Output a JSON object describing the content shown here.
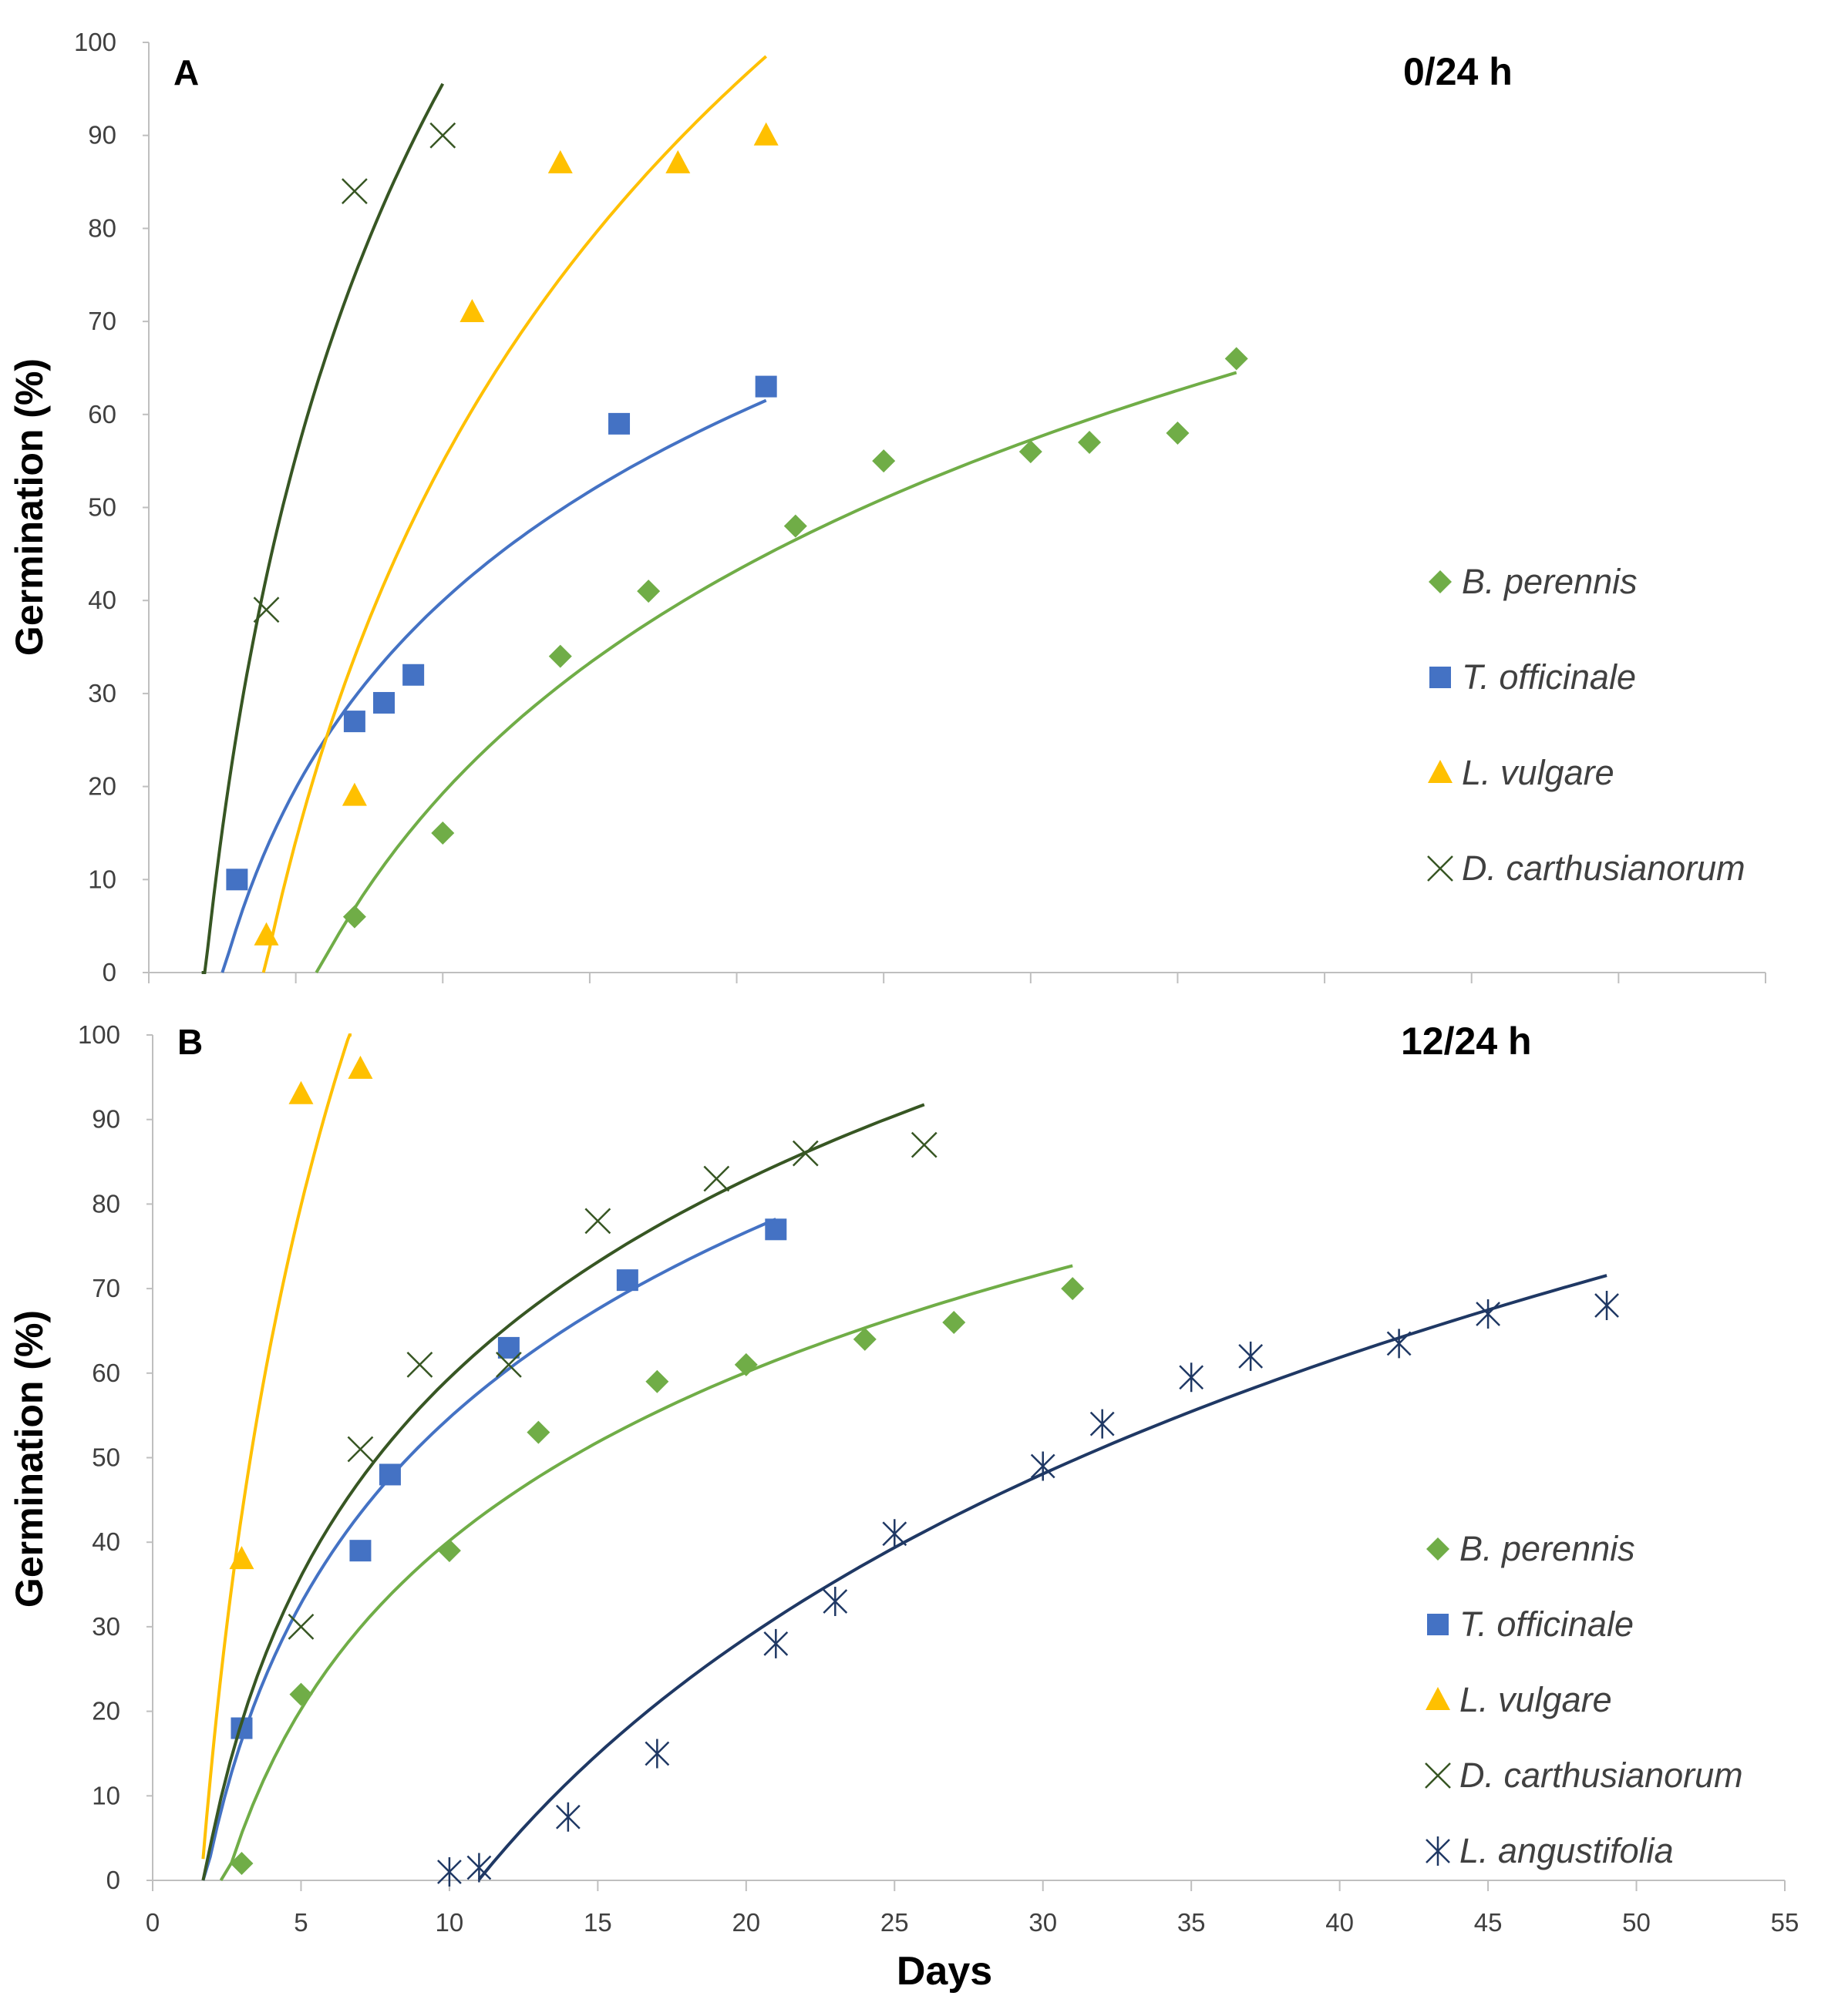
{
  "colors": {
    "B. perennis": "#70AD47",
    "T. officinale": "#4472C4",
    "L. vulgare": "#FFC000",
    "D. carthusianorum": "#375623",
    "L. angustifolia": "#1F3864"
  },
  "series_style": {
    "B. perennis": {
      "marker": "diamond",
      "color": "#70AD47"
    },
    "T. officinale": {
      "marker": "square",
      "color": "#4472C4"
    },
    "L. vulgare": {
      "marker": "triangle",
      "color": "#FFC000"
    },
    "D. carthusianorum": {
      "marker": "x",
      "color": "#375623"
    },
    "L. angustifolia": {
      "marker": "asterisk",
      "color": "#1F3864"
    }
  },
  "chart_data": [
    {
      "type": "scatter",
      "panel": "A",
      "title": "0/24 h",
      "xlabel": "",
      "ylabel": "Germination (%)",
      "xlim": [
        0,
        55
      ],
      "ylim": [
        0,
        100
      ],
      "xticks": [
        0,
        5,
        10,
        15,
        20,
        25,
        30,
        35,
        40,
        45,
        50,
        55
      ],
      "yticks": [
        0,
        10,
        20,
        30,
        40,
        50,
        60,
        70,
        80,
        90,
        100
      ],
      "show_xtick_labels": false,
      "legend_position": "right",
      "series": [
        {
          "name": "B. perennis",
          "x": [
            7,
            10,
            14,
            17,
            22,
            25,
            30,
            32,
            35,
            37
          ],
          "y": [
            6,
            15,
            34,
            41,
            48,
            55,
            56,
            57,
            58,
            66
          ],
          "trend": {
            "type": "logarithmic",
            "x_range": [
              5.7,
              37
            ]
          }
        },
        {
          "name": "T. officinale",
          "x": [
            3,
            7,
            8,
            9,
            16,
            21
          ],
          "y": [
            10,
            27,
            29,
            32,
            59,
            63
          ],
          "trend": {
            "type": "logarithmic",
            "x_range": [
              2.5,
              21
            ]
          }
        },
        {
          "name": "L. vulgare",
          "x": [
            4,
            7,
            11,
            14,
            18,
            21
          ],
          "y": [
            4,
            19,
            71,
            87,
            87,
            90
          ],
          "trend": {
            "type": "logarithmic",
            "x_range": [
              3.9,
              21
            ]
          }
        },
        {
          "name": "D. carthusianorum",
          "x": [
            4,
            7,
            10
          ],
          "y": [
            39,
            84,
            90
          ],
          "trend": {
            "type": "logarithmic",
            "x_range": [
              1.8,
              10
            ]
          }
        }
      ]
    },
    {
      "type": "scatter",
      "panel": "B",
      "title": "12/24 h",
      "xlabel": "Days",
      "ylabel": "Germination (%)",
      "xlim": [
        0,
        55
      ],
      "ylim": [
        0,
        100
      ],
      "xticks": [
        0,
        5,
        10,
        15,
        20,
        25,
        30,
        35,
        40,
        45,
        50,
        55
      ],
      "yticks": [
        0,
        10,
        20,
        30,
        40,
        50,
        60,
        70,
        80,
        90,
        100
      ],
      "show_xtick_labels": true,
      "legend_position": "right",
      "series": [
        {
          "name": "B. perennis",
          "x": [
            3,
            5,
            10,
            13,
            17,
            20,
            24,
            27,
            31
          ],
          "y": [
            2,
            22,
            39,
            53,
            59,
            61,
            64,
            66,
            70
          ],
          "trend": {
            "type": "logarithmic",
            "x_range": [
              2.3,
              31
            ]
          }
        },
        {
          "name": "T. officinale",
          "x": [
            3,
            7,
            8,
            12,
            16,
            21
          ],
          "y": [
            18,
            39,
            48,
            63,
            71,
            77
          ],
          "trend": {
            "type": "logarithmic",
            "x_range": [
              1.7,
              21
            ]
          }
        },
        {
          "name": "L. vulgare",
          "x": [
            3,
            5,
            7
          ],
          "y": [
            38,
            93,
            96
          ],
          "trend": {
            "type": "logarithmic",
            "x_range": [
              1.7,
              6.7
            ]
          }
        },
        {
          "name": "D. carthusianorum",
          "x": [
            5,
            7,
            9,
            12,
            15,
            19,
            22,
            26
          ],
          "y": [
            30,
            51,
            61,
            61,
            78,
            83,
            86,
            87
          ],
          "trend": {
            "type": "logarithmic",
            "x_range": [
              1.7,
              26
            ]
          }
        },
        {
          "name": "L. angustifolia",
          "x": [
            10,
            11,
            14,
            17,
            21,
            23,
            25,
            30,
            32,
            35,
            37,
            42,
            45,
            49
          ],
          "y": [
            1,
            1.5,
            7.5,
            15,
            28,
            33,
            41,
            49,
            54,
            59.5,
            62,
            63.5,
            67,
            68
          ],
          "trend": {
            "type": "logarithmic",
            "x_range": [
              11,
              49
            ]
          }
        }
      ]
    }
  ]
}
